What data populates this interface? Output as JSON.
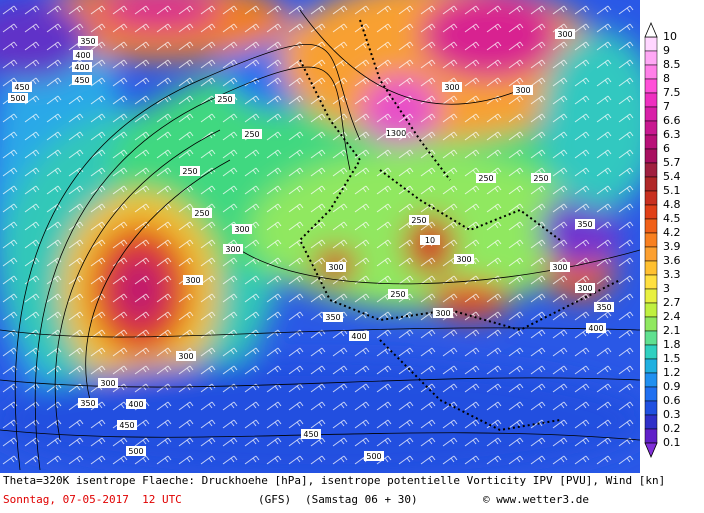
{
  "legend": {
    "levels": [
      10,
      9,
      8.5,
      8,
      7.5,
      7,
      6.6,
      6.3,
      6,
      5.7,
      5.4,
      5.1,
      4.8,
      4.5,
      4.2,
      3.9,
      3.6,
      3.3,
      3,
      2.7,
      2.4,
      2.1,
      1.8,
      1.5,
      1.2,
      0.9,
      0.6,
      0.3,
      0.2,
      0.1
    ],
    "colors": [
      "#ffd6ff",
      "#ffa8f5",
      "#ff80e8",
      "#ff50d8",
      "#ee30c0",
      "#d820a8",
      "#c81890",
      "#b81078",
      "#a81060",
      "#a02040",
      "#b02828",
      "#c83020",
      "#e04018",
      "#f06018",
      "#f88020",
      "#fca030",
      "#ffc030",
      "#ffe040",
      "#e8f040",
      "#c0f040",
      "#90e860",
      "#60e090",
      "#30d0c0",
      "#20b0e0",
      "#2090f0",
      "#2070f0",
      "#2050e0",
      "#3030c8",
      "#6020c8"
    ]
  },
  "contour_labels": [
    "350",
    "400",
    "450",
    "500",
    "450",
    "400",
    "250",
    "250",
    "250",
    "250",
    "300",
    "300",
    "300",
    "10",
    "300",
    "300",
    "250",
    "300",
    "300",
    "250",
    "350",
    "400",
    "300",
    "300",
    "350",
    "400",
    "450",
    "500",
    "500",
    "450",
    "300",
    "1300",
    "300",
    "300",
    "350",
    "250",
    "250",
    "300",
    "350",
    "400"
  ],
  "footer": {
    "title": "Theta=320K isentrope Flaeche: Druckhoehe [hPa], isentrope potentielle Vorticity IPV [PVU], Wind [kn]",
    "date": "Sonntag, 07-05-2017  12 UTC",
    "model": "(GFS)",
    "run": "(Samstag 06 + 30)",
    "credit": "© www.wetter3.de"
  }
}
